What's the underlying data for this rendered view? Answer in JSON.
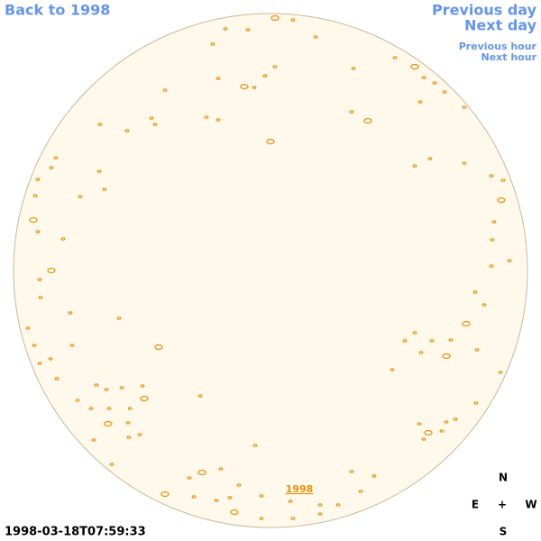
{
  "navigation": {
    "back": "Back to 1998",
    "previous_day": "Previous day",
    "next_day": "Next day",
    "previous_hour": "Previous hour",
    "next_hour": "Next hour"
  },
  "image": {
    "year_link": "1998",
    "timestamp": "1998-03-18T07:59:33"
  },
  "compass": {
    "north": "N",
    "east": "E",
    "center": "+",
    "west": "W",
    "south": "S"
  }
}
